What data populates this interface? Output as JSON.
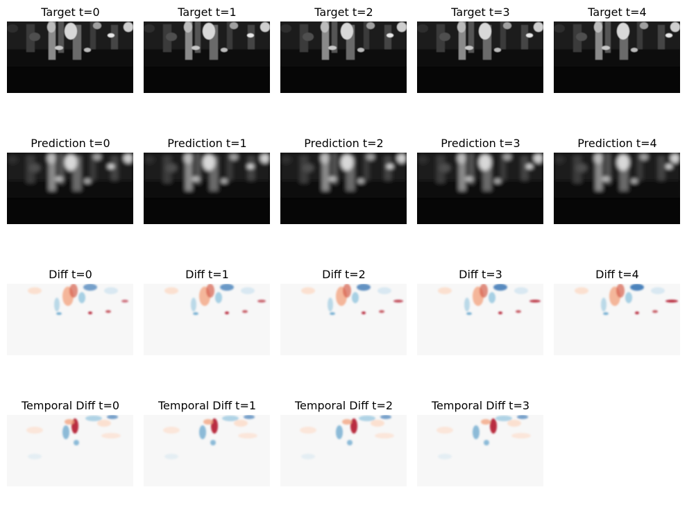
{
  "figure": {
    "rows": [
      {
        "kind": "target",
        "panels": [
          {
            "title": "Target t=0"
          },
          {
            "title": "Target t=1"
          },
          {
            "title": "Target t=2"
          },
          {
            "title": "Target t=3"
          },
          {
            "title": "Target t=4"
          }
        ]
      },
      {
        "kind": "prediction",
        "panels": [
          {
            "title": "Prediction t=0"
          },
          {
            "title": "Prediction t=1"
          },
          {
            "title": "Prediction t=2"
          },
          {
            "title": "Prediction t=3"
          },
          {
            "title": "Prediction t=4"
          }
        ]
      },
      {
        "kind": "diff",
        "panels": [
          {
            "title": "Diff t=0"
          },
          {
            "title": "Diff t=1"
          },
          {
            "title": "Diff t=2"
          },
          {
            "title": "Diff t=3"
          },
          {
            "title": "Diff t=4"
          }
        ]
      },
      {
        "kind": "temporal-diff",
        "panels": [
          {
            "title": "Temporal Diff t=0"
          },
          {
            "title": "Temporal Diff t=1"
          },
          {
            "title": "Temporal Diff t=2"
          },
          {
            "title": "Temporal Diff t=3"
          }
        ]
      }
    ],
    "colors": {
      "grayscale_background": "#060606",
      "diverging_neutral": "#f7f7f7",
      "diverging_positive": "#b2182b",
      "diverging_negative": "#2166ac"
    }
  }
}
